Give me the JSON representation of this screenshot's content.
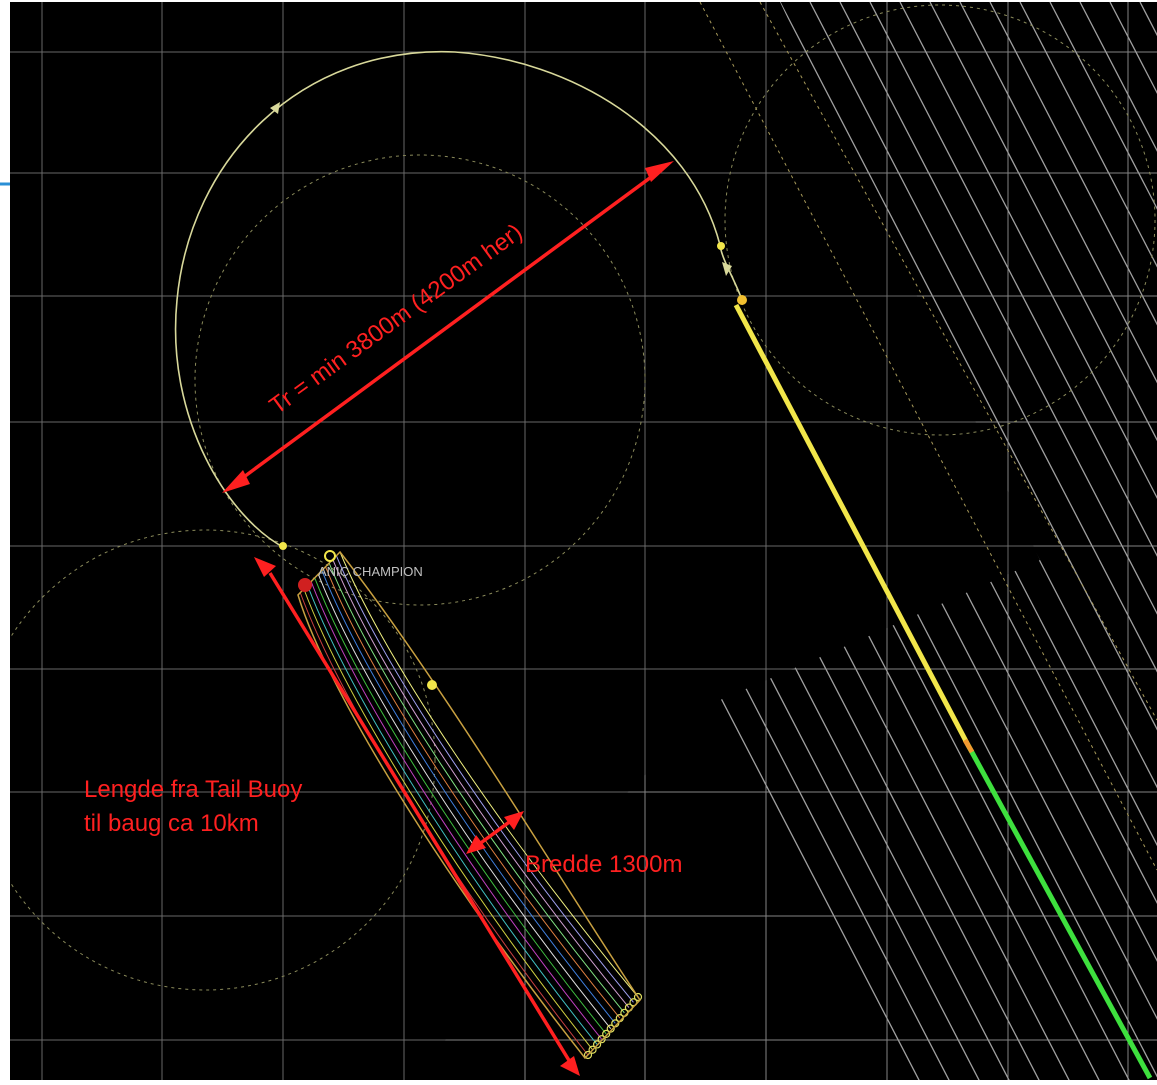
{
  "vessel": {
    "label": "ANIC CHAMPION"
  },
  "annotations": {
    "turn_radius": "Tr = min 3800m (4200m her)",
    "length_line1": "Lengde fra Tail Buoy",
    "length_line2": "til baug ca 10km",
    "width": "Bredde 1300m"
  },
  "colors": {
    "background": "#000000",
    "grid": "#9a9a9a",
    "annotation": "#ff2020",
    "sail_line": "#f2e64a",
    "sail_line_recorded": "#3ee03e",
    "vessel_track": "#d8d89a",
    "accent_edge": "#2a8fd6"
  },
  "streamer_count": 12
}
